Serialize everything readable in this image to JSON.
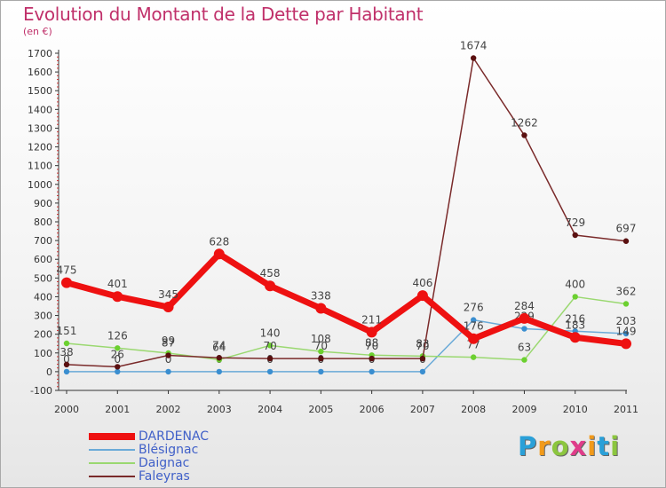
{
  "title": "Evolution du Montant de la Dette par Habitant",
  "unit": "(en €)",
  "logo": {
    "letters": [
      "P",
      "r",
      "o",
      "x",
      "i",
      "t",
      "i"
    ],
    "colors": [
      "#2aa0d8",
      "#f29a1a",
      "#8cc63f",
      "#e03c8a",
      "#f29a1a",
      "#2aa0d8",
      "#8cc63f"
    ]
  },
  "chart_data": {
    "type": "line",
    "x": [
      "2000",
      "2001",
      "2002",
      "2003",
      "2004",
      "2005",
      "2006",
      "2007",
      "2008",
      "2009",
      "2010",
      "2011"
    ],
    "ylim": [
      -100,
      1700
    ],
    "yticks": [
      "-100",
      "0",
      "100",
      "200",
      "300",
      "400",
      "500",
      "600",
      "700",
      "800",
      "900",
      "1000",
      "1100",
      "1200",
      "1300",
      "1400",
      "1500",
      "1600",
      "1700"
    ],
    "grid": false,
    "legend_position": "bottom-left",
    "series": [
      {
        "name": "DARDENAC",
        "color": "#ee1111",
        "width": 7,
        "values": [
          475,
          401,
          345,
          628,
          458,
          338,
          211,
          406,
          176,
          284,
          183,
          149
        ],
        "labels": [
          "475",
          "401",
          "345",
          "628",
          "458",
          "338",
          "211",
          "406",
          "176",
          "284",
          "183",
          "149"
        ]
      },
      {
        "name": "Blésignac",
        "color": "#6aaad8",
        "width": 1.5,
        "values": [
          0,
          0,
          0,
          0,
          0,
          0,
          0,
          0,
          276,
          229,
          216,
          203
        ],
        "labels": [
          "0",
          "0",
          "0",
          "0",
          "0",
          "0",
          "0",
          "0",
          "276",
          "229",
          "216",
          "203"
        ]
      },
      {
        "name": "Daignac",
        "color": "#9ad870",
        "width": 1.5,
        "values": [
          151,
          126,
          99,
          64,
          140,
          108,
          88,
          83,
          77,
          63,
          400,
          362
        ],
        "labels": [
          "151",
          "126",
          "99",
          "64",
          "140",
          "108",
          "88",
          "83",
          "77",
          "63",
          "400",
          "362"
        ]
      },
      {
        "name": "Faleyras",
        "color": "#7a2a2a",
        "width": 1.5,
        "values": [
          38,
          26,
          87,
          74,
          70,
          70,
          70,
          70,
          1674,
          1262,
          729,
          697
        ],
        "labels": [
          "38",
          "26",
          "87",
          "74",
          "70",
          "70",
          "70",
          "70",
          "1674",
          "1262",
          "729",
          "697"
        ]
      }
    ]
  }
}
